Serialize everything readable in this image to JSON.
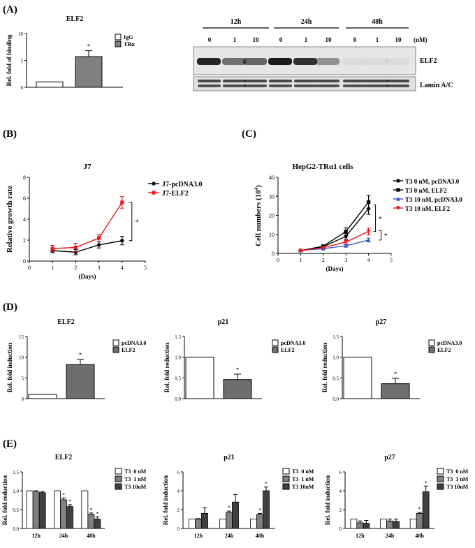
{
  "panels": {
    "A": {
      "letter": "(A)",
      "chip": {
        "type": "bar",
        "title": "ELF2",
        "ylabel": "Rel. fold of binding",
        "ylim": [
          0,
          10
        ],
        "yticks": [
          "0",
          "5",
          "10"
        ],
        "categories": [
          "IgG",
          "TRα"
        ],
        "values": [
          1.0,
          5.7
        ],
        "errors": [
          0,
          1.1
        ],
        "colors": [
          "#ffffff",
          "#808080"
        ],
        "significance": [
          "",
          "*"
        ],
        "legend": [
          "IgG",
          "TRα"
        ]
      },
      "blot": {
        "time_labels": [
          "12h",
          "24h",
          "48h"
        ],
        "dose_labels": [
          "0",
          "1",
          "10",
          "0",
          "1",
          "10",
          "0",
          "1",
          "10"
        ],
        "unit": "(nM)",
        "bands": [
          "ELF2",
          "Lamin A/C"
        ],
        "elf2_intensity": [
          0.9,
          0.55,
          0.6,
          0.95,
          0.85,
          0.4,
          0.05,
          0.05,
          0.05
        ]
      }
    },
    "B": {
      "letter": "(B)",
      "chart_data": {
        "type": "line",
        "title": "J7",
        "xlabel": "(Days)",
        "ylabel": "Relative growth rate",
        "xlim": [
          0,
          5
        ],
        "ylim": [
          0,
          8
        ],
        "xticks": [
          "0",
          "1",
          "2",
          "3",
          "4",
          "5"
        ],
        "yticks": [
          "0",
          "2",
          "4",
          "6",
          "8"
        ],
        "x": [
          1,
          2,
          3,
          4
        ],
        "series": [
          {
            "name": "J7-pcDNA3.0",
            "color": "#000000",
            "marker": "circle",
            "values": [
              1.0,
              0.85,
              1.55,
              1.95
            ],
            "errors": [
              0.2,
              0.25,
              0.3,
              0.4
            ]
          },
          {
            "name": "J7-ELF2",
            "color": "#e41a1c",
            "marker": "square",
            "values": [
              1.2,
              1.3,
              2.2,
              5.6
            ],
            "errors": [
              0.3,
              0.4,
              0.35,
              0.55
            ]
          }
        ],
        "significance": "*"
      }
    },
    "C": {
      "letter": "(C)",
      "chart_data": {
        "type": "line",
        "title": "HepG2-TRα1 cells",
        "xlabel": "(Days)",
        "ylabel": "Cell numbers (10",
        "ylabel_sup": "4",
        "ylabel_end": ")",
        "xlim": [
          0,
          5
        ],
        "ylim": [
          0,
          40
        ],
        "xticks": [
          "0",
          "1",
          "2",
          "3",
          "4",
          "5"
        ],
        "yticks": [
          "0",
          "10",
          "20",
          "30",
          "40"
        ],
        "x": [
          1,
          2,
          3,
          4
        ],
        "series": [
          {
            "name": "T3 0 nM, pcDNA3.0",
            "color": "#000000",
            "marker": "circle",
            "values": [
              1.5,
              3.5,
              9.0,
              23.5
            ],
            "errors": [
              0.3,
              0.6,
              1.5,
              3.0
            ]
          },
          {
            "name": "T3 0 nM, ELF2",
            "color": "#000000",
            "marker": "square",
            "values": [
              1.5,
              3.8,
              11.5,
              27.0
            ],
            "errors": [
              0.3,
              0.7,
              2.0,
              3.5
            ]
          },
          {
            "name": "T3 10 nM, pcDNA3.0",
            "color": "#3b5fc0",
            "marker": "triangle-up",
            "values": [
              1.5,
              2.5,
              4.0,
              7.0
            ],
            "errors": [
              0.2,
              0.4,
              0.6,
              1.0
            ]
          },
          {
            "name": "T3 10 nM, ELF2",
            "color": "#e41a1c",
            "marker": "triangle-down",
            "values": [
              1.5,
              3.0,
              6.0,
              11.5
            ],
            "errors": [
              0.3,
              0.5,
              1.0,
              1.8
            ]
          }
        ],
        "significance": [
          "*",
          "*"
        ]
      }
    },
    "D": {
      "letter": "(D)",
      "charts": [
        {
          "type": "bar",
          "title": "ELF2",
          "ylabel": "Rel. fold induction",
          "ylim": [
            0,
            15
          ],
          "yticks": [
            "0",
            "5",
            "10",
            "15"
          ],
          "categories": [
            "pcDNA3.0",
            "ELF2"
          ],
          "values": [
            1.0,
            8.2
          ],
          "errors": [
            0,
            1.3
          ],
          "significance": [
            "",
            "*"
          ],
          "legend": [
            "pcDNA3.0",
            "ELF2"
          ]
        },
        {
          "type": "bar",
          "title": "p21",
          "ylabel": "Rel. fold reduction",
          "ylim": [
            0,
            1.5
          ],
          "yticks": [
            "0.0",
            "0.5",
            "1.0",
            "1.5"
          ],
          "categories": [
            "pcDNA3.0",
            "ELF2"
          ],
          "values": [
            1.0,
            0.46
          ],
          "errors": [
            0,
            0.13
          ],
          "significance": [
            "",
            "*"
          ],
          "legend": [
            "pcDNA3.0",
            "ELF2"
          ]
        },
        {
          "type": "bar",
          "title": "p27",
          "ylabel": "Rel. fold reduction",
          "ylim": [
            0,
            1.5
          ],
          "yticks": [
            "0.0",
            "0.5",
            "1.0",
            "1.5"
          ],
          "categories": [
            "pcDNA3.0",
            "ELF2"
          ],
          "values": [
            1.0,
            0.36
          ],
          "errors": [
            0,
            0.13
          ],
          "significance": [
            "",
            "*"
          ],
          "legend": [
            "pcDNA3.0",
            "ELF2"
          ]
        }
      ]
    },
    "E": {
      "letter": "(E)",
      "charts": [
        {
          "type": "bar",
          "title": "ELF2",
          "ylabel": "Rel. fold reduction",
          "ylim": [
            0,
            1.5
          ],
          "yticks": [
            "0.0",
            "0.5",
            "1.0",
            "1.5"
          ],
          "categories": [
            "12h",
            "24h",
            "48h"
          ],
          "series": [
            {
              "name": "T3  0 nM",
              "color": "#ffffff",
              "values": [
                1.0,
                1.0,
                1.0
              ],
              "errors": [
                0,
                0,
                0
              ]
            },
            {
              "name": "T3  1 nM",
              "color": "#808080",
              "values": [
                0.97,
                0.76,
                0.38
              ],
              "errors": [
                0.03,
                0.05,
                0.03
              ]
            },
            {
              "name": "T3 10nM",
              "color": "#404040",
              "values": [
                0.95,
                0.58,
                0.25
              ],
              "errors": [
                0.03,
                0.05,
                0.06
              ]
            }
          ],
          "significance": [
            [
              "",
              "",
              ""
            ],
            [
              "",
              "*",
              "*"
            ],
            [
              "",
              "*",
              "*"
            ]
          ]
        },
        {
          "type": "bar",
          "title": "p21",
          "ylabel": "Rel. fold induction",
          "ylim": [
            0,
            6
          ],
          "yticks": [
            "0",
            "2",
            "4",
            "6"
          ],
          "categories": [
            "12h",
            "24h",
            "48h"
          ],
          "series": [
            {
              "name": "T3  0 nM",
              "color": "#ffffff",
              "values": [
                1.0,
                1.0,
                1.0
              ],
              "errors": [
                0,
                0,
                0
              ]
            },
            {
              "name": "T3  1 nM",
              "color": "#808080",
              "values": [
                1.0,
                1.7,
                1.5
              ],
              "errors": [
                0.05,
                0.15,
                0.1
              ]
            },
            {
              "name": "T3 10nM",
              "color": "#404040",
              "values": [
                1.6,
                2.8,
                4.0
              ],
              "errors": [
                0.6,
                0.8,
                0.4
              ]
            }
          ],
          "significance": [
            [
              "",
              "",
              ""
            ],
            [
              "",
              "*",
              "*"
            ],
            [
              "",
              "",
              "*"
            ]
          ]
        },
        {
          "type": "bar",
          "title": "p27",
          "ylabel": "Rel. fold induction",
          "ylim": [
            0,
            6
          ],
          "yticks": [
            "0",
            "2",
            "4",
            "6"
          ],
          "categories": [
            "12h",
            "24h",
            "48h"
          ],
          "series": [
            {
              "name": "T3  0 nM",
              "color": "#ffffff",
              "values": [
                1.0,
                1.0,
                1.0
              ],
              "errors": [
                0,
                0,
                0
              ]
            },
            {
              "name": "T3  1 nM",
              "color": "#808080",
              "values": [
                0.6,
                0.8,
                1.6
              ],
              "errors": [
                0.2,
                0.2,
                0.1
              ]
            },
            {
              "name": "T3 10nM",
              "color": "#404040",
              "values": [
                0.55,
                0.75,
                3.9
              ],
              "errors": [
                0.3,
                0.25,
                0.6
              ]
            }
          ],
          "significance": [
            [
              "",
              "",
              ""
            ],
            [
              "",
              "",
              "*"
            ],
            [
              "",
              "",
              "*"
            ]
          ]
        }
      ]
    }
  }
}
